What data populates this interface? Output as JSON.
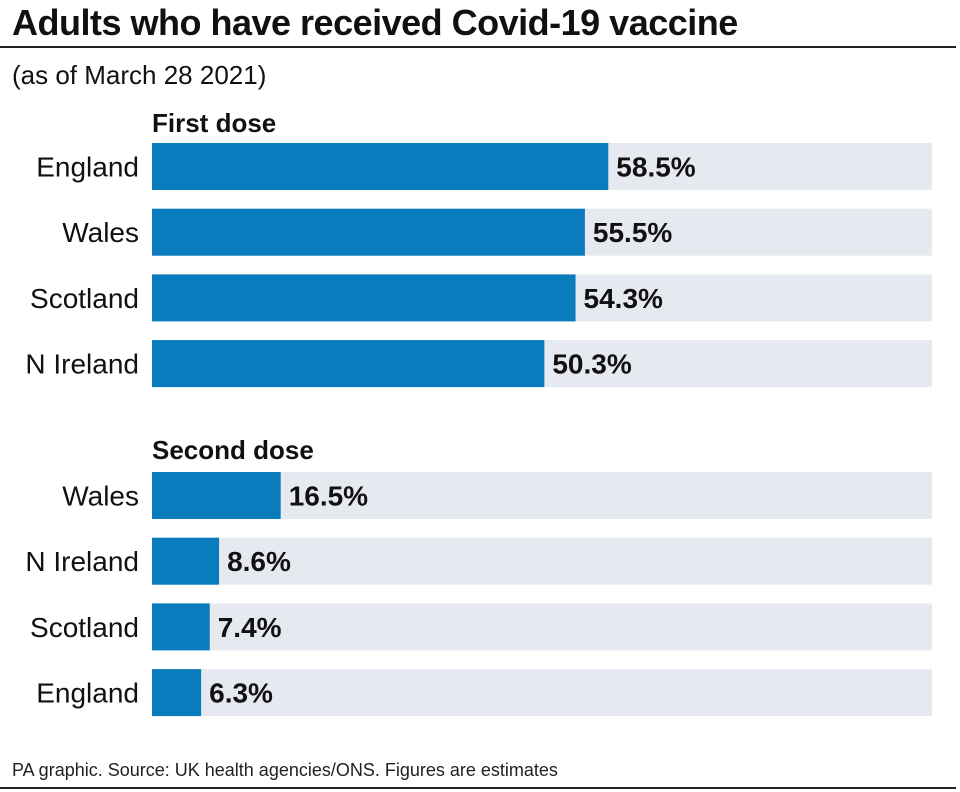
{
  "title": "Adults who have received Covid-19 vaccine",
  "subtitle": "(as of March 28 2021)",
  "footer": "PA graphic. Source: UK health agencies/ONS. Figures are estimates",
  "colors": {
    "bar": "#0a7bbd",
    "track": "#e6e9f0",
    "text": "#111111"
  },
  "chart_data": [
    {
      "type": "bar",
      "orientation": "horizontal",
      "title": "First dose",
      "categories": [
        "England",
        "Wales",
        "Scotland",
        "N Ireland"
      ],
      "values": [
        58.5,
        55.5,
        54.3,
        50.3
      ],
      "labels": [
        "58.5%",
        "55.5%",
        "54.3%",
        "50.3%"
      ],
      "xlim": [
        0,
        100
      ],
      "unit": "%"
    },
    {
      "type": "bar",
      "orientation": "horizontal",
      "title": "Second dose",
      "categories": [
        "Wales",
        "N Ireland",
        "Scotland",
        "England"
      ],
      "values": [
        16.5,
        8.6,
        7.4,
        6.3
      ],
      "labels": [
        "16.5%",
        "8.6%",
        "7.4%",
        "6.3%"
      ],
      "xlim": [
        0,
        100
      ],
      "unit": "%"
    }
  ]
}
